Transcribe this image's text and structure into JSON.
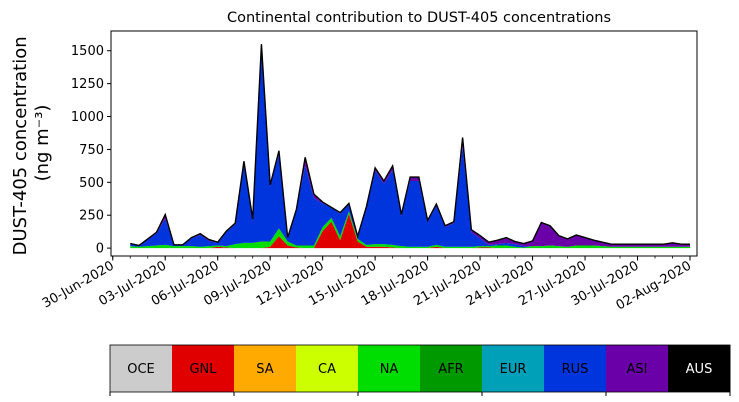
{
  "chart_data": {
    "type": "area",
    "title": "Continental contribution to DUST-405 concentrations",
    "ylabel_line1": "DUST-405 concentration",
    "ylabel_line2": "(ng m⁻³)",
    "xlabel": "",
    "ylim": [
      -60,
      1650
    ],
    "xlim": [
      -0.1,
      33.4
    ],
    "grid": false,
    "y_ticks": [
      0,
      250,
      500,
      750,
      1000,
      1250,
      1500
    ],
    "x_ticks": [
      {
        "pos": 0,
        "label": "30-Jun-2020"
      },
      {
        "pos": 3,
        "label": "03-Jul-2020"
      },
      {
        "pos": 6,
        "label": "06-Jul-2020"
      },
      {
        "pos": 9,
        "label": "09-Jul-2020"
      },
      {
        "pos": 12,
        "label": "12-Jul-2020"
      },
      {
        "pos": 15,
        "label": "15-Jul-2020"
      },
      {
        "pos": 18,
        "label": "18-Jul-2020"
      },
      {
        "pos": 21,
        "label": "21-Jul-2020"
      },
      {
        "pos": 24,
        "label": "24-Jul-2020"
      },
      {
        "pos": 27,
        "label": "27-Jul-2020"
      },
      {
        "pos": 30,
        "label": "30-Jul-2020"
      },
      {
        "pos": 33,
        "label": "02-Aug-2020"
      }
    ],
    "x_minor_step": 1,
    "x_days_since_30jun": [
      1,
      1.5,
      2,
      2.5,
      3,
      3.5,
      4,
      4.5,
      5,
      5.5,
      6,
      6.5,
      7,
      7.5,
      8,
      8.5,
      9,
      9.5,
      10,
      10.5,
      11,
      11.5,
      12,
      12.5,
      13,
      13.5,
      14,
      14.5,
      15,
      15.5,
      16,
      16.5,
      17,
      17.5,
      18,
      18.5,
      19,
      19.5,
      20,
      20.5,
      21,
      21.5,
      22,
      22.5,
      23,
      23.5,
      24,
      24.5,
      25,
      25.5,
      26,
      26.5,
      27,
      27.5,
      28,
      28.5,
      29,
      29.5,
      30,
      30.5,
      31,
      31.5,
      32,
      32.5,
      33
    ],
    "series": [
      {
        "name": "GNL",
        "color": "#e00000",
        "values": [
          0,
          0,
          0,
          0,
          0,
          0,
          0,
          0,
          0,
          0,
          10,
          5,
          0,
          0,
          0,
          0,
          10,
          90,
          20,
          5,
          0,
          0,
          130,
          200,
          60,
          260,
          50,
          10,
          10,
          10,
          5,
          0,
          0,
          0,
          0,
          10,
          0,
          0,
          0,
          0,
          5,
          5,
          0,
          0,
          0,
          0,
          0,
          0,
          0,
          0,
          0,
          0,
          0,
          0,
          0,
          0,
          0,
          0,
          0,
          0,
          0,
          0,
          0,
          0,
          0
        ]
      },
      {
        "name": "NA",
        "color": "#00dd00",
        "values": [
          15,
          10,
          15,
          20,
          25,
          15,
          15,
          15,
          10,
          15,
          10,
          10,
          30,
          40,
          40,
          50,
          40,
          60,
          30,
          15,
          20,
          20,
          30,
          30,
          30,
          20,
          20,
          15,
          20,
          20,
          20,
          15,
          10,
          10,
          10,
          15,
          10,
          10,
          10,
          10,
          10,
          10,
          20,
          20,
          10,
          5,
          15,
          15,
          20,
          15,
          10,
          20,
          20,
          20,
          15,
          10,
          10,
          10,
          10,
          10,
          10,
          10,
          10,
          10,
          10
        ]
      },
      {
        "name": "RUS",
        "color": "#0034dd",
        "values": [
          20,
          10,
          50,
          90,
          200,
          10,
          10,
          60,
          90,
          40,
          20,
          110,
          150,
          600,
          170,
          1450,
          420,
          570,
          20,
          270,
          610,
          360,
          180,
          80,
          170,
          60,
          20,
          280,
          560,
          460,
          570,
          230,
          500,
          500,
          190,
          300,
          150,
          180,
          760,
          110,
          60,
          10,
          10,
          20,
          20,
          10,
          0,
          0,
          0,
          0,
          0,
          0,
          0,
          0,
          0,
          0,
          0,
          0,
          0,
          0,
          0,
          0,
          0,
          0,
          0
        ]
      },
      {
        "name": "ASI",
        "color": "#6a00a8",
        "values": [
          0,
          0,
          5,
          10,
          30,
          0,
          0,
          5,
          10,
          10,
          5,
          5,
          10,
          20,
          10,
          50,
          10,
          20,
          10,
          5,
          60,
          30,
          10,
          0,
          10,
          0,
          0,
          10,
          20,
          20,
          30,
          10,
          30,
          30,
          10,
          10,
          10,
          10,
          70,
          20,
          20,
          20,
          30,
          40,
          20,
          20,
          40,
          180,
          150,
          80,
          60,
          80,
          60,
          40,
          30,
          20,
          20,
          20,
          20,
          20,
          20,
          20,
          30,
          20,
          20
        ]
      }
    ],
    "legend": {
      "placement": "below",
      "entries": [
        {
          "label": "OCE",
          "color": "#cccccc",
          "text_color": "#000000"
        },
        {
          "label": "GNL",
          "color": "#e00000",
          "text_color": "#000000"
        },
        {
          "label": "SA",
          "color": "#ffaa00",
          "text_color": "#000000"
        },
        {
          "label": "CA",
          "color": "#ccff00",
          "text_color": "#000000"
        },
        {
          "label": "NA",
          "color": "#00dd00",
          "text_color": "#000000"
        },
        {
          "label": "AFR",
          "color": "#009900",
          "text_color": "#000000"
        },
        {
          "label": "EUR",
          "color": "#00a0b8",
          "text_color": "#000000"
        },
        {
          "label": "RUS",
          "color": "#0034dd",
          "text_color": "#000000"
        },
        {
          "label": "ASI",
          "color": "#6a00a8",
          "text_color": "#000000"
        },
        {
          "label": "AUS",
          "color": "#000000",
          "text_color": "#ffffff"
        }
      ]
    }
  }
}
